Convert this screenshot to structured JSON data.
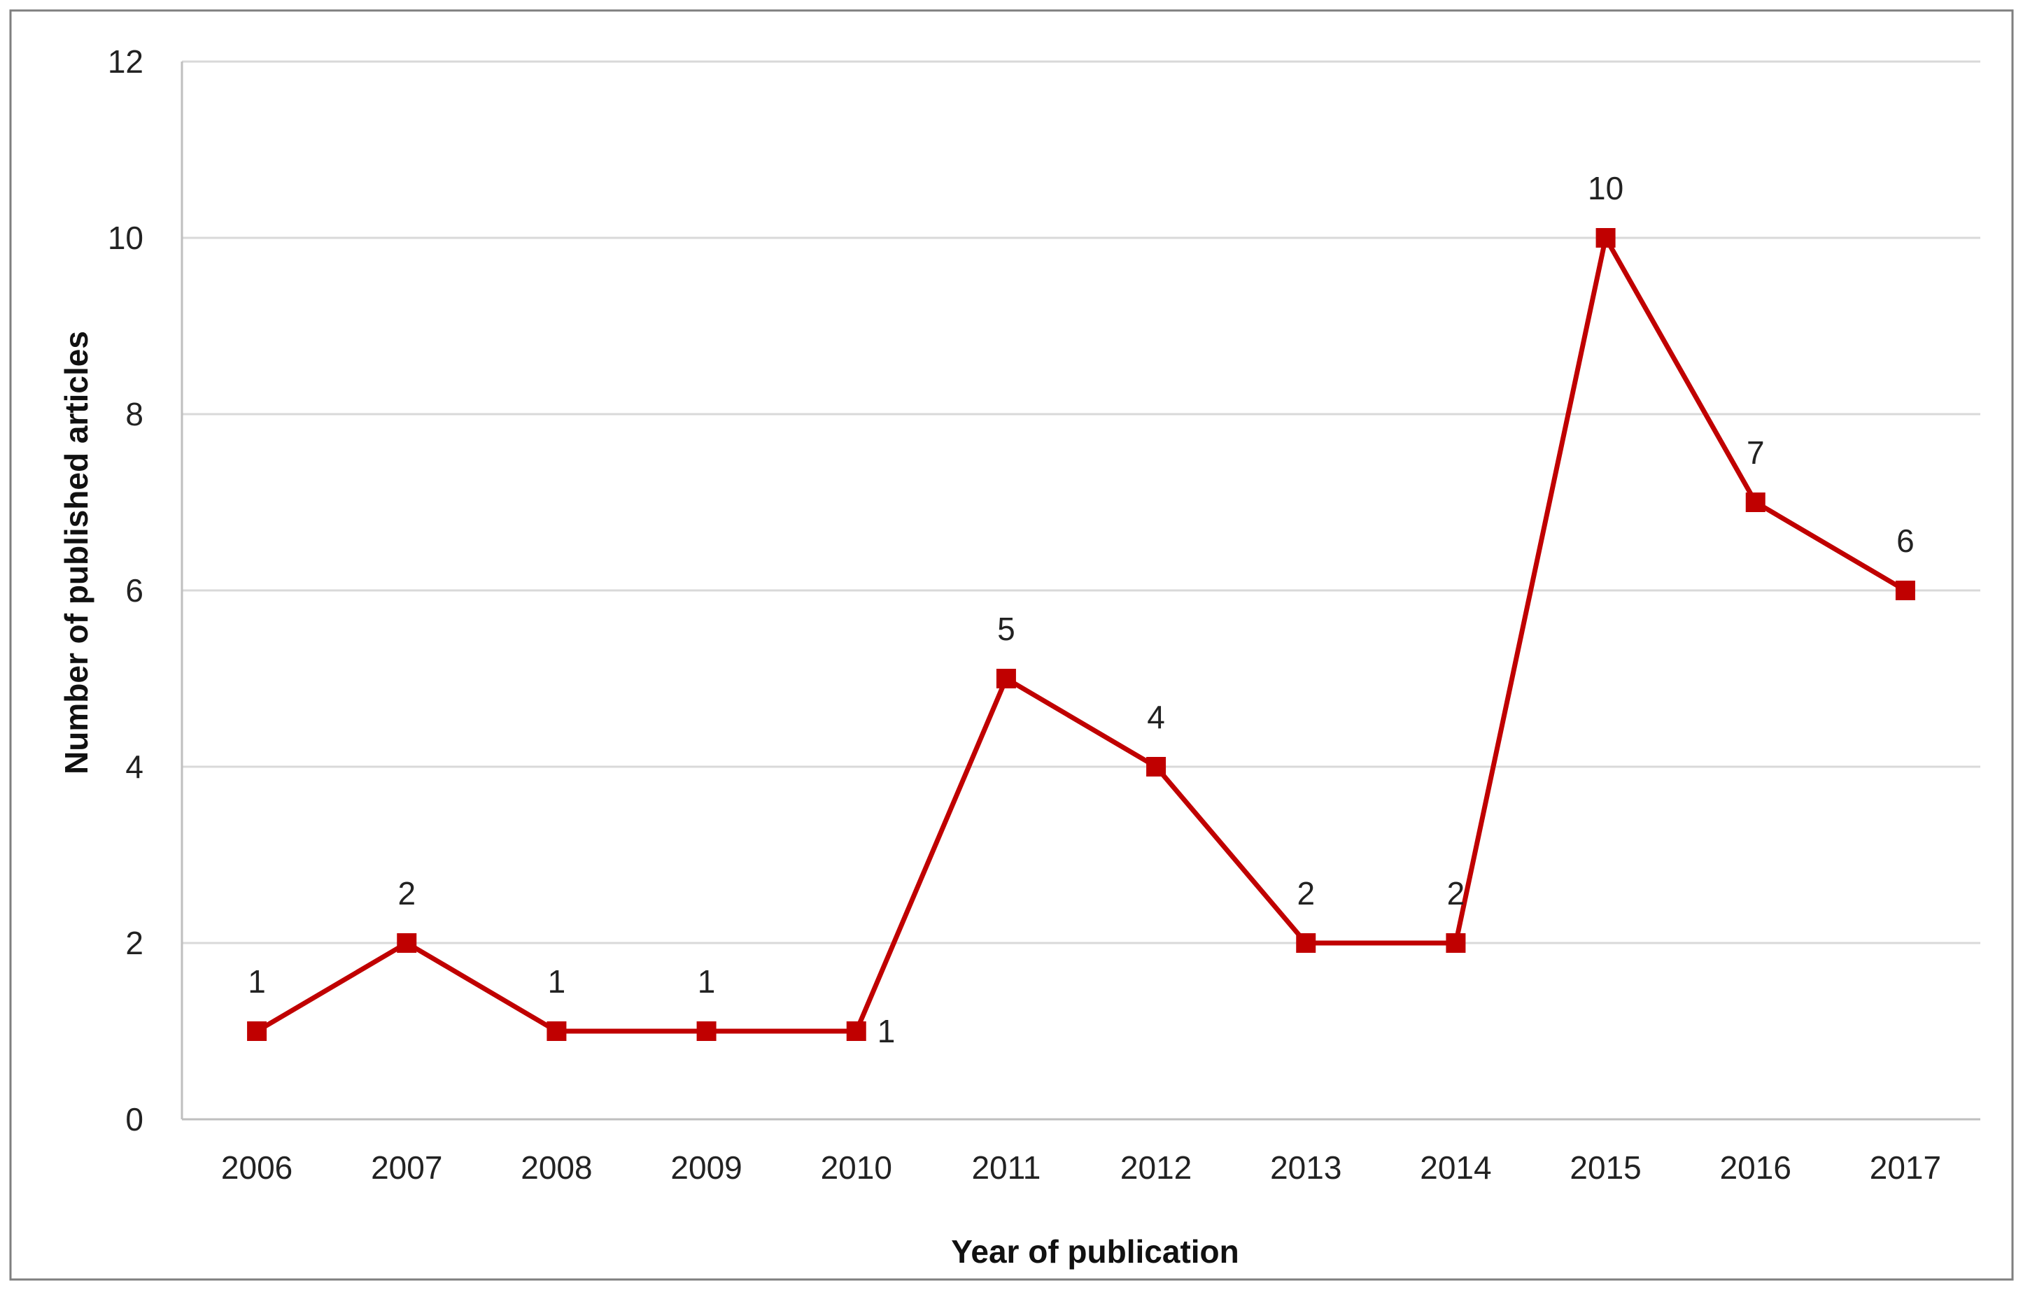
{
  "chart_data": {
    "type": "line",
    "title": "",
    "xlabel": "Year of publication",
    "ylabel": "Number of published articles",
    "categories": [
      "2006",
      "2007",
      "2008",
      "2009",
      "2010",
      "2011",
      "2012",
      "2013",
      "2014",
      "2015",
      "2016",
      "2017"
    ],
    "series": [
      {
        "values": [
          1,
          2,
          1,
          1,
          1,
          5,
          4,
          2,
          2,
          10,
          7,
          6
        ]
      }
    ],
    "ylim": [
      0,
      12
    ],
    "yticks": [
      "0",
      "2",
      "4",
      "6",
      "8",
      "10",
      "12"
    ],
    "data_labels": [
      "1",
      "2",
      "1",
      "1",
      "1",
      "5",
      "4",
      "2",
      "2",
      "10",
      "7",
      "6"
    ],
    "grid": true,
    "legend": "none",
    "colors": {
      "line": "#c00000",
      "marker": "#c00000",
      "grid": "#d9d9d9",
      "frame": "#7f7f7f"
    }
  }
}
